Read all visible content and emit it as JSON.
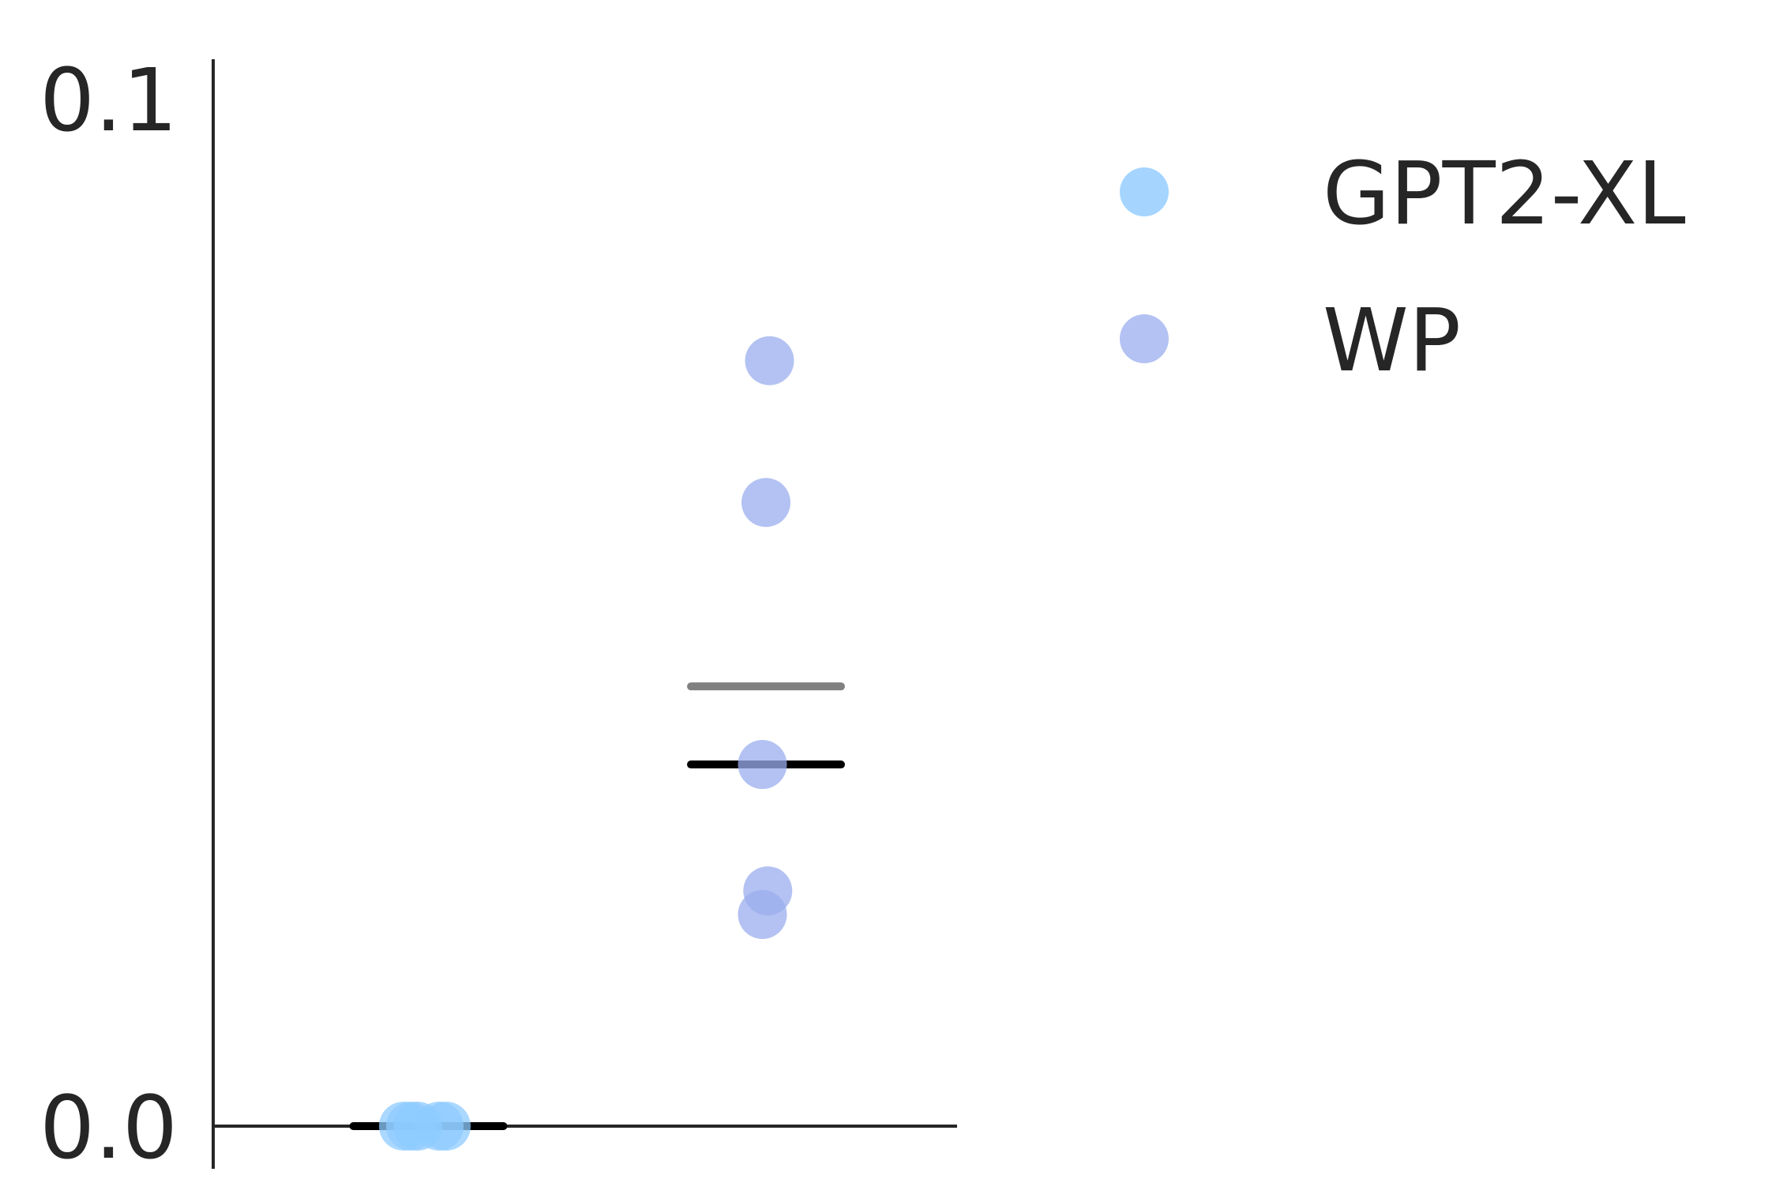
{
  "chart_data": {
    "type": "scatter",
    "title": "",
    "xlabel": "",
    "ylabel": "",
    "ylim": [
      0.0,
      0.1
    ],
    "yticks": [
      {
        "value": 0.0,
        "label": "0.0"
      },
      {
        "value": 0.1,
        "label": "0.1"
      }
    ],
    "grid": false,
    "legend_position": "top-right",
    "series": [
      {
        "name": "GPT2-XL",
        "color": "#8ecbff",
        "x": [
          0.98,
          1.0,
          1.02,
          1.08,
          1.1
        ],
        "values": [
          0.0,
          0.0,
          0.0,
          0.0,
          0.0
        ],
        "mean": 0.0,
        "median": 0.0
      },
      {
        "name": "WP",
        "color": "#9aaeee",
        "x": [
          2.01,
          2.0,
          1.99,
          2.005,
          1.99
        ],
        "values": [
          0.0745,
          0.0607,
          0.0352,
          0.0229,
          0.0206
        ],
        "mean": 0.0428,
        "median": 0.0352
      }
    ],
    "mean_color": "#808080",
    "median_color": "#000000"
  }
}
